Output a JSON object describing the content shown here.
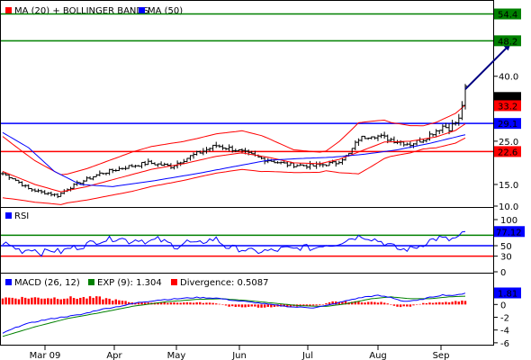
{
  "chart_data": [
    {
      "type": "candlestick",
      "legend": [
        {
          "label": "MA (20) + BOLLINGER BANDS",
          "color": "#ff0000"
        },
        {
          "label": "MA (50)",
          "color": "#0000ff"
        }
      ],
      "ylim": [
        10,
        57
      ],
      "y_ticks": [
        10,
        15,
        25,
        40
      ],
      "x_labels": [
        "Mar 09",
        "Apr",
        "May",
        "Jun",
        "Jul",
        "Aug",
        "Sep"
      ],
      "levels": [
        {
          "value": 54.4,
          "label": "54.4",
          "color": "#008000",
          "tag": "tag-green"
        },
        {
          "value": 48.2,
          "label": "48.2",
          "color": "#008000",
          "tag": "tag-green"
        },
        {
          "value": 29.1,
          "label": "29.1",
          "color": "#0000ff",
          "tag": "tag-blue"
        },
        {
          "value": 22.6,
          "label": "22.6",
          "color": "#ff0000",
          "tag": "tag-red"
        }
      ],
      "tags": [
        {
          "value": 35.1,
          "label": "35.1",
          "color": "#000000"
        },
        {
          "value": 33.2,
          "label": "33.2",
          "color": "#ff0000"
        }
      ],
      "price_anchors": [
        [
          0,
          17.5
        ],
        [
          3,
          16.5
        ],
        [
          8,
          14
        ],
        [
          12,
          13.2
        ],
        [
          14,
          13
        ],
        [
          17,
          12.4
        ],
        [
          20,
          14
        ],
        [
          24,
          15.5
        ],
        [
          30,
          17.5
        ],
        [
          38,
          19
        ],
        [
          45,
          20
        ],
        [
          52,
          19.2
        ],
        [
          58,
          21.5
        ],
        [
          66,
          24
        ],
        [
          72,
          23
        ],
        [
          80,
          21
        ],
        [
          88,
          19.6
        ],
        [
          96,
          19.3
        ],
        [
          103,
          20
        ],
        [
          107,
          22
        ],
        [
          110,
          25.5
        ],
        [
          114,
          26.5
        ],
        [
          118,
          25.8
        ],
        [
          122,
          25
        ],
        [
          126,
          24.3
        ],
        [
          130,
          25.5
        ],
        [
          134,
          27.5
        ],
        [
          136,
          28.5
        ],
        [
          138,
          28
        ],
        [
          141,
          30
        ],
        [
          143,
          37
        ]
      ],
      "ma20_anchors": [
        [
          0,
          18
        ],
        [
          10,
          15
        ],
        [
          18,
          13.3
        ],
        [
          26,
          14.5
        ],
        [
          36,
          16.5
        ],
        [
          46,
          18.5
        ],
        [
          56,
          19.8
        ],
        [
          66,
          21.5
        ],
        [
          74,
          22.3
        ],
        [
          82,
          21.3
        ],
        [
          90,
          20
        ],
        [
          98,
          19.8
        ],
        [
          104,
          20.8
        ],
        [
          110,
          22.5
        ],
        [
          118,
          24.8
        ],
        [
          126,
          25
        ],
        [
          134,
          26
        ],
        [
          140,
          27.5
        ],
        [
          143,
          29
        ]
      ],
      "ma50_anchors": [
        [
          0,
          27
        ],
        [
          8,
          23.5
        ],
        [
          16,
          18
        ],
        [
          24,
          15
        ],
        [
          34,
          14.5
        ],
        [
          48,
          16
        ],
        [
          60,
          17.5
        ],
        [
          72,
          19.2
        ],
        [
          82,
          20.6
        ],
        [
          92,
          21
        ],
        [
          102,
          21.3
        ],
        [
          112,
          22
        ],
        [
          122,
          23
        ],
        [
          132,
          24.5
        ],
        [
          143,
          26.5
        ]
      ],
      "bb_width_anchors": [
        [
          0,
          0.45
        ],
        [
          20,
          0.28
        ],
        [
          40,
          0.3
        ],
        [
          60,
          0.25
        ],
        [
          80,
          0.22
        ],
        [
          90,
          0.15
        ],
        [
          100,
          0.13
        ],
        [
          110,
          0.3
        ],
        [
          120,
          0.18
        ],
        [
          130,
          0.12
        ],
        [
          143,
          0.15
        ]
      ],
      "arrow": {
        "from": [
          143,
          37
        ],
        "to": [
          157,
          47.5
        ]
      }
    },
    {
      "type": "line",
      "title": "RSI",
      "legend": [
        {
          "label": "RSI",
          "color": "#0000ff"
        }
      ],
      "ylim": [
        0,
        100
      ],
      "y_ticks": [
        0,
        30,
        50,
        70,
        100
      ],
      "levels": [
        {
          "value": 70,
          "color": "#008000"
        },
        {
          "value": 50,
          "color": "#0000ff"
        },
        {
          "value": 30,
          "color": "#ff0000"
        }
      ],
      "tag": {
        "value": 77.12,
        "label": "77.12",
        "color": "#0000ff"
      },
      "rsi_anchors": [
        [
          0,
          56
        ],
        [
          3,
          48
        ],
        [
          6,
          40
        ],
        [
          9,
          45
        ],
        [
          12,
          36
        ],
        [
          15,
          42
        ],
        [
          18,
          38
        ],
        [
          21,
          46
        ],
        [
          24,
          48
        ],
        [
          27,
          55
        ],
        [
          30,
          60
        ],
        [
          33,
          62
        ],
        [
          36,
          66
        ],
        [
          39,
          58
        ],
        [
          42,
          63
        ],
        [
          45,
          57
        ],
        [
          48,
          62
        ],
        [
          51,
          55
        ],
        [
          54,
          48
        ],
        [
          57,
          58
        ],
        [
          60,
          52
        ],
        [
          63,
          60
        ],
        [
          66,
          63
        ],
        [
          69,
          48
        ],
        [
          72,
          45
        ],
        [
          75,
          42
        ],
        [
          78,
          38
        ],
        [
          81,
          40
        ],
        [
          84,
          40
        ],
        [
          87,
          45
        ],
        [
          90,
          43
        ],
        [
          93,
          48
        ],
        [
          96,
          44
        ],
        [
          99,
          52
        ],
        [
          102,
          52
        ],
        [
          105,
          58
        ],
        [
          108,
          65
        ],
        [
          111,
          69
        ],
        [
          114,
          64
        ],
        [
          117,
          58
        ],
        [
          120,
          50
        ],
        [
          123,
          42
        ],
        [
          126,
          44
        ],
        [
          129,
          50
        ],
        [
          132,
          60
        ],
        [
          135,
          65
        ],
        [
          138,
          61
        ],
        [
          141,
          66
        ],
        [
          143,
          77.12
        ]
      ]
    },
    {
      "type": "line",
      "legend": [
        {
          "label": "MACD (26, 12)",
          "color": "#0000ff"
        },
        {
          "label": "EXP (9): 1.304",
          "color": "#008000"
        },
        {
          "label": "Divergence: 0.5087",
          "color": "#ff0000"
        }
      ],
      "ylim": [
        -6.3,
        2.3
      ],
      "y_ticks": [
        -6,
        -4,
        -2,
        0,
        2
      ],
      "tag": {
        "value": 1.81,
        "label": "1.81",
        "color": "#0000ff"
      },
      "macd_anchors": [
        [
          0,
          -4.5
        ],
        [
          6,
          -3.2
        ],
        [
          12,
          -2.5
        ],
        [
          18,
          -2
        ],
        [
          24,
          -1.6
        ],
        [
          30,
          -0.8
        ],
        [
          36,
          -0.3
        ],
        [
          42,
          0.3
        ],
        [
          48,
          0.7
        ],
        [
          54,
          0.9
        ],
        [
          60,
          1.1
        ],
        [
          66,
          1
        ],
        [
          72,
          0.6
        ],
        [
          78,
          0.3
        ],
        [
          84,
          -0.1
        ],
        [
          90,
          -0.4
        ],
        [
          96,
          -0.5
        ],
        [
          100,
          -0.2
        ],
        [
          104,
          0.3
        ],
        [
          108,
          0.8
        ],
        [
          112,
          1.2
        ],
        [
          116,
          1.4
        ],
        [
          120,
          1.1
        ],
        [
          124,
          0.5
        ],
        [
          128,
          0.6
        ],
        [
          132,
          1.1
        ],
        [
          136,
          1.5
        ],
        [
          140,
          1.4
        ],
        [
          143,
          1.81
        ]
      ],
      "signal_anchors": [
        [
          0,
          -5
        ],
        [
          10,
          -3.5
        ],
        [
          20,
          -2.2
        ],
        [
          30,
          -1.3
        ],
        [
          40,
          -0.3
        ],
        [
          50,
          0.4
        ],
        [
          60,
          0.8
        ],
        [
          68,
          0.9
        ],
        [
          76,
          0.6
        ],
        [
          84,
          0.2
        ],
        [
          92,
          -0.2
        ],
        [
          100,
          -0.3
        ],
        [
          106,
          0.1
        ],
        [
          114,
          0.9
        ],
        [
          120,
          1.2
        ],
        [
          126,
          0.9
        ],
        [
          132,
          0.9
        ],
        [
          138,
          1.2
        ],
        [
          143,
          1.304
        ]
      ],
      "divergence_sign_anchors": [
        [
          0,
          1
        ],
        [
          6,
          1
        ],
        [
          30,
          1
        ],
        [
          40,
          0.3
        ],
        [
          50,
          0.3
        ],
        [
          60,
          0.3
        ],
        [
          66,
          0.2
        ],
        [
          70,
          -0.3
        ],
        [
          80,
          -0.4
        ],
        [
          90,
          -0.3
        ],
        [
          98,
          -0.1
        ],
        [
          102,
          0.4
        ],
        [
          110,
          0.4
        ],
        [
          118,
          0.3
        ],
        [
          122,
          -0.4
        ],
        [
          126,
          -0.3
        ],
        [
          130,
          0.2
        ],
        [
          136,
          0.3
        ],
        [
          143,
          0.5087
        ]
      ]
    }
  ]
}
